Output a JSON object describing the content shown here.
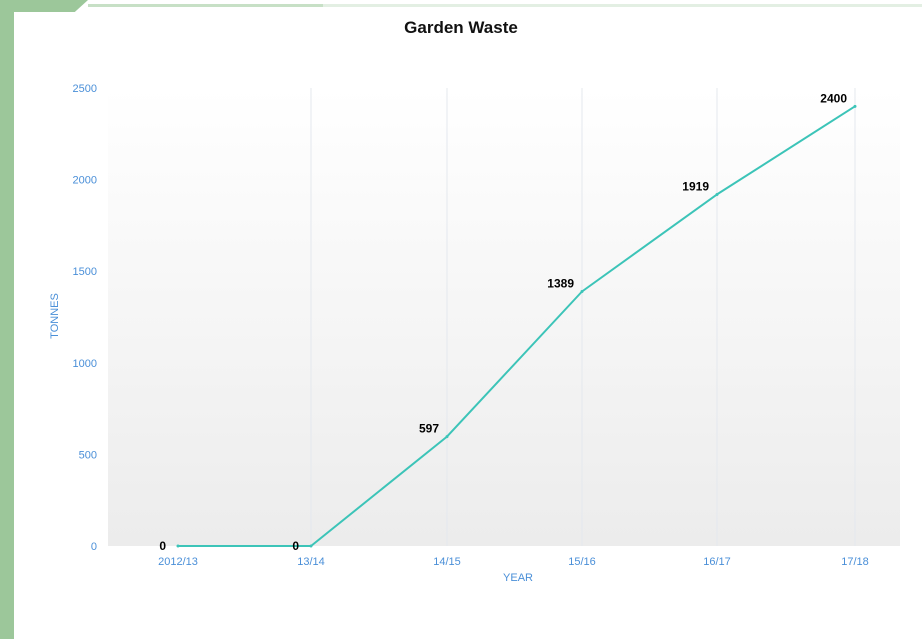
{
  "chart_data": {
    "type": "line",
    "title": "Garden Waste",
    "xlabel": "YEAR",
    "ylabel": "TONNES",
    "categories": [
      "2012/13",
      "13/14",
      "14/15",
      "15/16",
      "16/17",
      "17/18"
    ],
    "series": [
      {
        "values": [
          0,
          0,
          597,
          1389,
          1919,
          2400
        ],
        "color": "#3cc4b8"
      }
    ],
    "data_labels": [
      "0",
      "0",
      "597",
      "1389",
      "1919",
      "2400"
    ],
    "yticks": [
      "0",
      "500",
      "1000",
      "1500",
      "2000",
      "2500"
    ],
    "ylim": [
      0,
      2500
    ],
    "grid": "vertical",
    "tick_color": "#4a8fd8"
  }
}
